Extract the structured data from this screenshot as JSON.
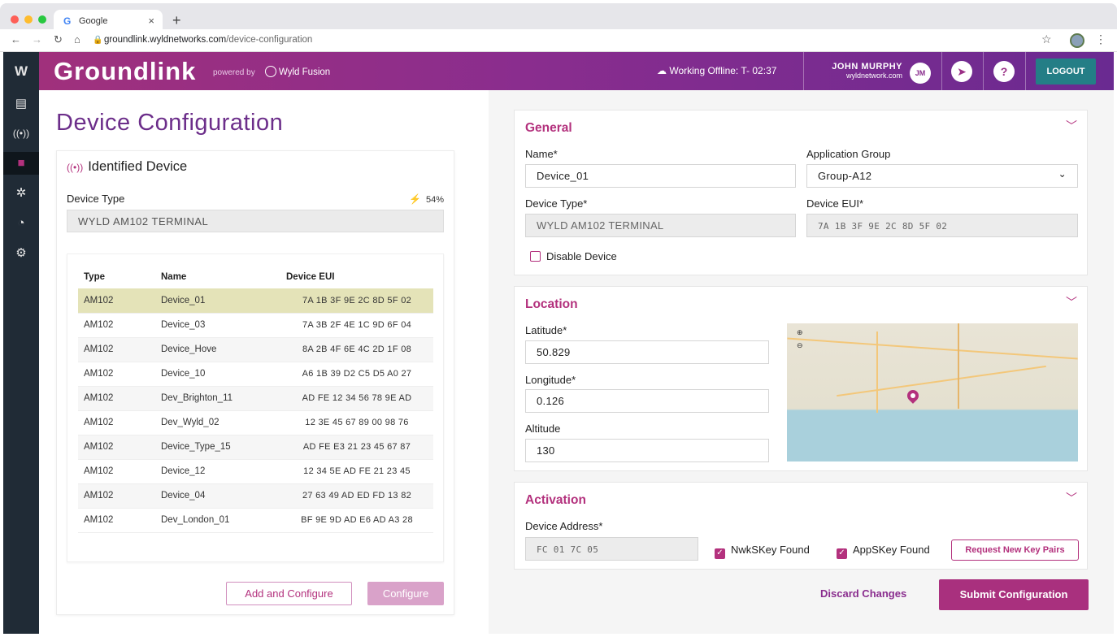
{
  "browser": {
    "tab_title": "Google",
    "url_host": "groundlink.wyldnetworks.com",
    "url_path": "/device-configuration"
  },
  "header": {
    "brand": "Groundlink",
    "powered_by": "powered by",
    "partner": "Wyld Fusion",
    "offline_status": "Working Offline:  T- 02:37",
    "user_name": "JOHN MURPHY",
    "user_domain": "wyldnetwork.com",
    "user_initials": "JM",
    "logout_label": "LOGOUT"
  },
  "sidebar": {
    "items": [
      "logo",
      "dashboard",
      "devices",
      "configuration",
      "network",
      "analytics",
      "settings"
    ],
    "active": "configuration"
  },
  "left": {
    "page_title": "Device Configuration",
    "card_title": "Identified Device",
    "device_type_label": "Device Type",
    "battery": "54%",
    "device_type_value": "WYLD AM102 TERMINAL",
    "table": {
      "columns": [
        "Type",
        "Name",
        "Device EUI"
      ],
      "rows": [
        {
          "type": "AM102",
          "name": "Device_01",
          "eui": "7A 1B 3F 9E 2C 8D 5F 02"
        },
        {
          "type": "AM102",
          "name": "Device_03",
          "eui": "7A 3B 2F 4E 1C 9D 6F 04"
        },
        {
          "type": "AM102",
          "name": "Device_Hove",
          "eui": "8A 2B 4F 6E 4C 2D 1F 08"
        },
        {
          "type": "AM102",
          "name": "Device_10",
          "eui": "A6 1B 39 D2 C5 D5 A0 27"
        },
        {
          "type": "AM102",
          "name": "Dev_Brighton_11",
          "eui": "AD FE 12 34 56 78 9E AD"
        },
        {
          "type": "AM102",
          "name": "Dev_Wyld_02",
          "eui": "12 3E 45 67 89 00 98 76"
        },
        {
          "type": "AM102",
          "name": "Device_Type_15",
          "eui": "AD FE E3 21 23 45 67 87"
        },
        {
          "type": "AM102",
          "name": "Device_12",
          "eui": "12 34 5E AD FE 21 23 45"
        },
        {
          "type": "AM102",
          "name": "Device_04",
          "eui": "27 63 49 AD ED FD 13 82"
        },
        {
          "type": "AM102",
          "name": "Dev_London_01",
          "eui": "BF 9E 9D AD E6 AD A3 28"
        }
      ]
    },
    "add_configure_label": "Add and Configure",
    "configure_label": "Configure"
  },
  "general": {
    "title": "General",
    "name_label": "Name*",
    "name_value": "Device_01",
    "app_group_label": "Application Group",
    "app_group_value": "Group-A12",
    "device_type_label": "Device Type*",
    "device_type_value": "WYLD AM102 TERMINAL",
    "eui_label": "Device EUI*",
    "eui_value": "7A 1B 3F 9E 2C 8D 5F 02",
    "disable_label": "Disable Device"
  },
  "location": {
    "title": "Location",
    "lat_label": "Latitude*",
    "lat_value": "50.829",
    "lon_label": "Longitude*",
    "lon_value": "0.126",
    "alt_label": "Altitude",
    "alt_value": "130"
  },
  "activation": {
    "title": "Activation",
    "addr_label": "Device Address*",
    "addr_value": "FC 01 7C 05",
    "nwk_label": "NwkSKey Found",
    "app_label": "AppSKey Found",
    "request_label": "Request New Key Pairs"
  },
  "footer": {
    "discard_label": "Discard Changes",
    "submit_label": "Submit Configuration"
  },
  "colors": {
    "accent": "#b3317d",
    "header_start": "#a0307c",
    "header_end": "#6a2a91",
    "logout": "#247e86",
    "sidebar": "#202b36"
  }
}
